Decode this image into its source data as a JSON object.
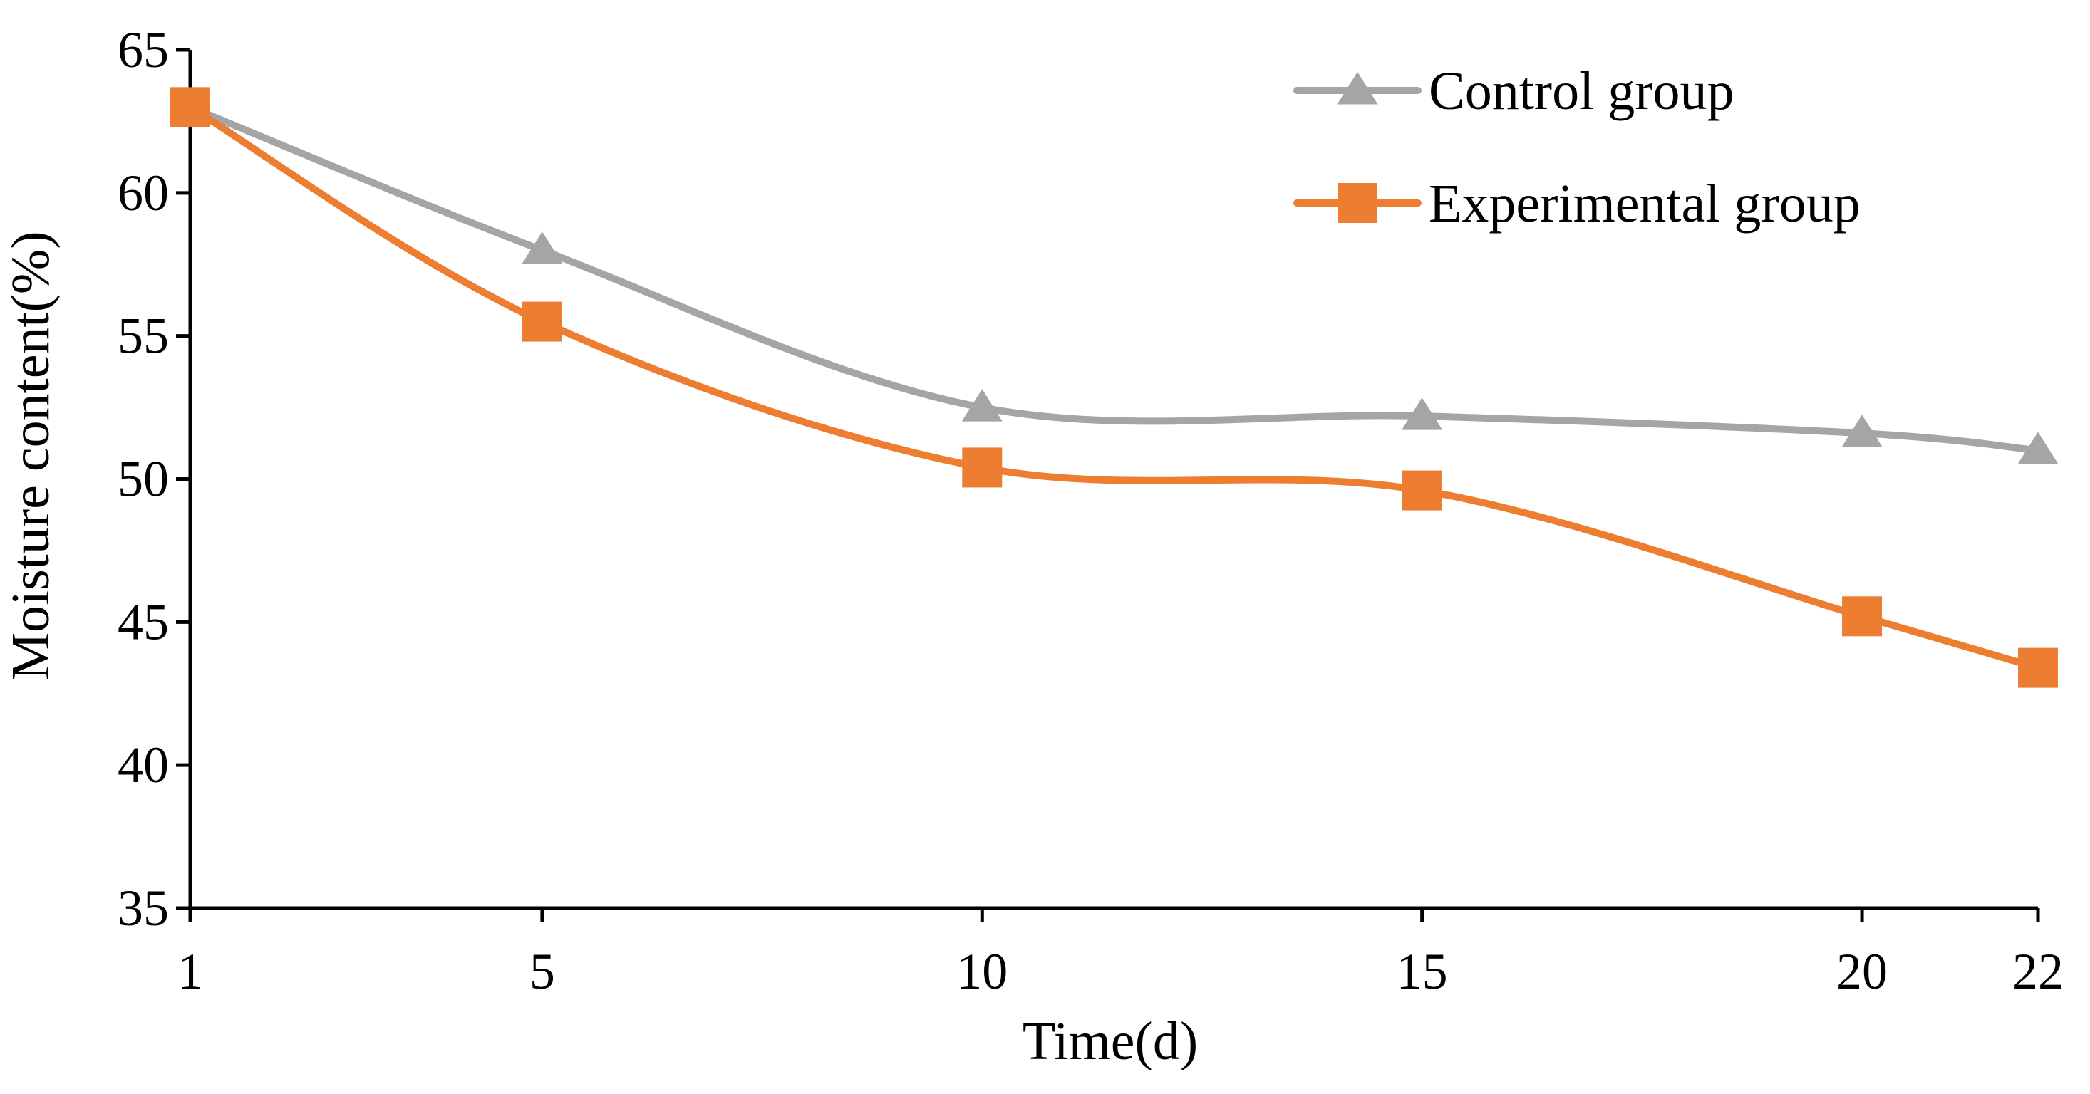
{
  "chart_data": {
    "type": "line",
    "title": "",
    "xlabel": "Time(d)",
    "ylabel": "Moisture content(%)",
    "x": [
      1,
      5,
      10,
      15,
      20,
      22
    ],
    "x_tick_labels": [
      "1",
      "5",
      "10",
      "15",
      "20",
      "22"
    ],
    "ylim": [
      35,
      65
    ],
    "y_ticks": [
      35,
      40,
      45,
      50,
      55,
      60,
      65
    ],
    "y_tick_labels": [
      "35",
      "40",
      "45",
      "50",
      "55",
      "60",
      "65"
    ],
    "smooth": true,
    "legend_position": "top-right",
    "grid": false,
    "series": [
      {
        "name": "Control group",
        "values": [
          63.0,
          58.0,
          52.5,
          52.2,
          51.6,
          51.0
        ],
        "color": "#A5A5A5",
        "marker": "triangle"
      },
      {
        "name": "Experimental group",
        "values": [
          63.0,
          55.5,
          50.4,
          49.6,
          45.2,
          43.4
        ],
        "color": "#ED7D31",
        "marker": "square"
      }
    ]
  }
}
